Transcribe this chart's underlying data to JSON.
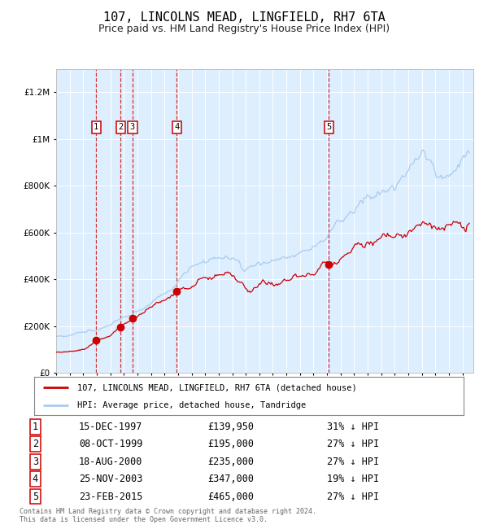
{
  "title": "107, LINCOLNS MEAD, LINGFIELD, RH7 6TA",
  "subtitle": "Price paid vs. HM Land Registry's House Price Index (HPI)",
  "title_fontsize": 11,
  "subtitle_fontsize": 9,
  "ylim": [
    0,
    1300000
  ],
  "xlim_start": 1995.0,
  "xlim_end": 2025.8,
  "background_color": "#ffffff",
  "plot_bg_color": "#ddeeff",
  "grid_color": "#ffffff",
  "sale_dates_x": [
    1997.96,
    1999.77,
    2000.63,
    2003.9,
    2015.14
  ],
  "sale_prices_y": [
    139950,
    195000,
    235000,
    347000,
    465000
  ],
  "sale_labels": [
    "1",
    "2",
    "3",
    "4",
    "5"
  ],
  "legend_line1": "107, LINCOLNS MEAD, LINGFIELD, RH7 6TA (detached house)",
  "legend_line2": "HPI: Average price, detached house, Tandridge",
  "line1_color": "#cc0000",
  "line2_color": "#aaccee",
  "footer_text": "Contains HM Land Registry data © Crown copyright and database right 2024.\nThis data is licensed under the Open Government Licence v3.0.",
  "table_data": [
    [
      "1",
      "15-DEC-1997",
      "£139,950",
      "31% ↓ HPI"
    ],
    [
      "2",
      "08-OCT-1999",
      "£195,000",
      "27% ↓ HPI"
    ],
    [
      "3",
      "18-AUG-2000",
      "£235,000",
      "27% ↓ HPI"
    ],
    [
      "4",
      "25-NOV-2003",
      "£347,000",
      "19% ↓ HPI"
    ],
    [
      "5",
      "23-FEB-2015",
      "£465,000",
      "27% ↓ HPI"
    ]
  ]
}
